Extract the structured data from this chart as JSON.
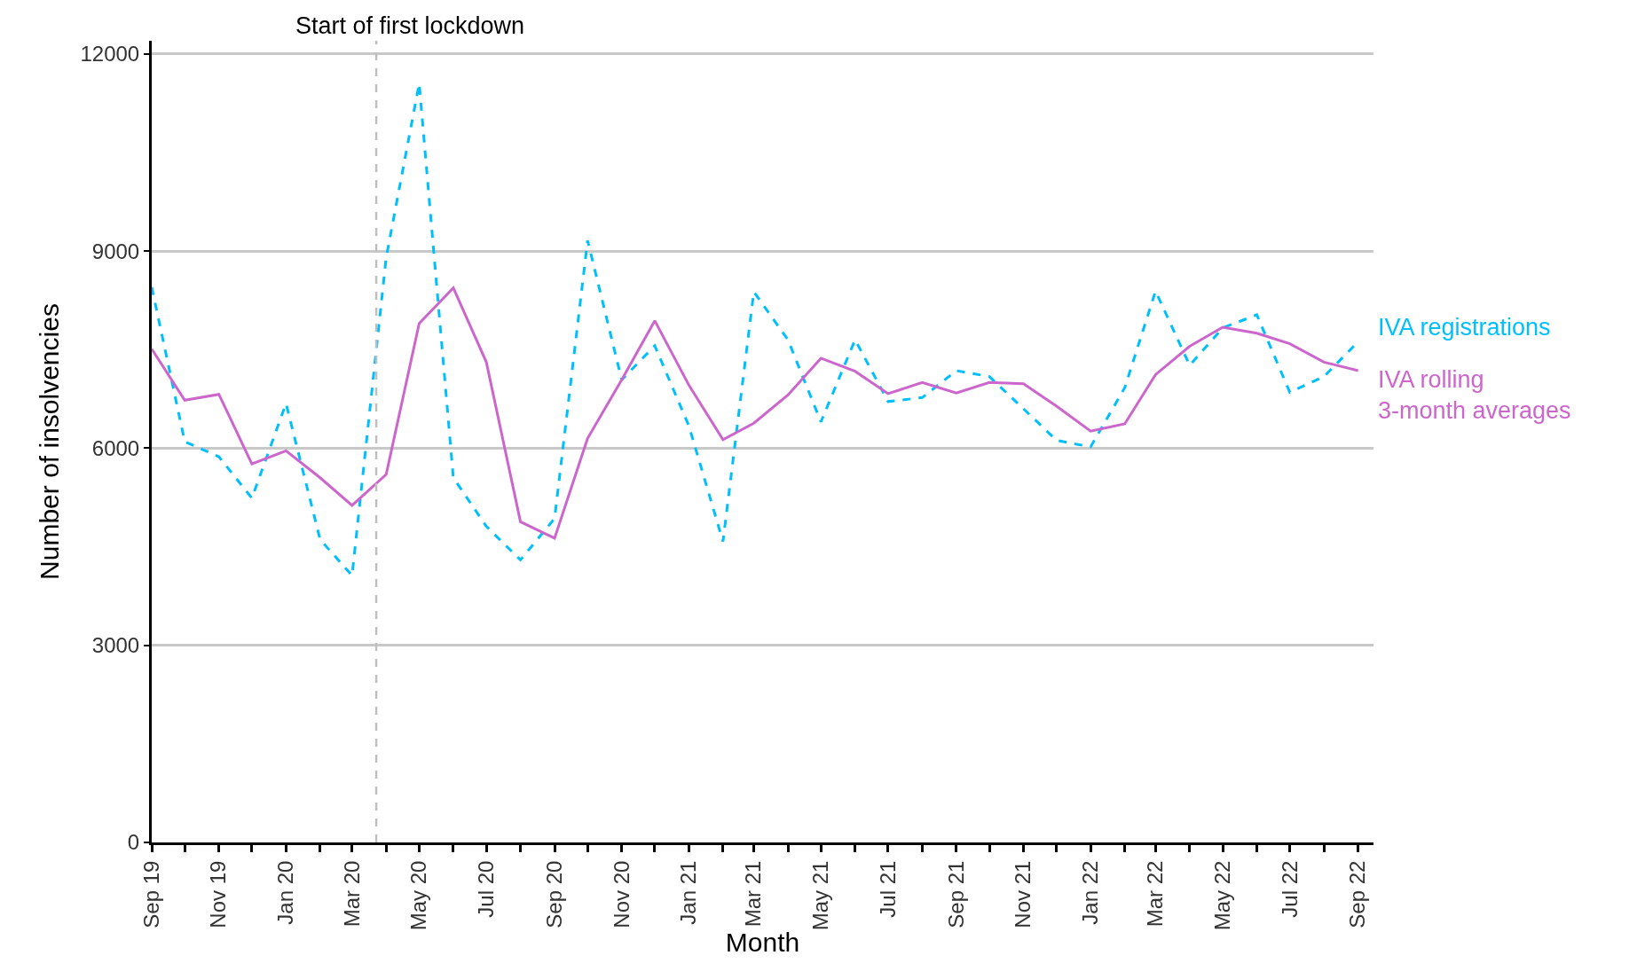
{
  "chart_data": {
    "type": "line",
    "xlabel": "Month",
    "ylabel": "Number of insolvencies",
    "x": [
      "2019-09",
      "2019-10",
      "2019-11",
      "2019-12",
      "2020-01",
      "2020-02",
      "2020-03",
      "2020-04",
      "2020-05",
      "2020-06",
      "2020-07",
      "2020-08",
      "2020-09",
      "2020-10",
      "2020-11",
      "2020-12",
      "2021-01",
      "2021-02",
      "2021-03",
      "2021-04",
      "2021-05",
      "2021-06",
      "2021-07",
      "2021-08",
      "2021-09",
      "2021-10",
      "2021-11",
      "2021-12",
      "2022-01",
      "2022-02",
      "2022-03",
      "2022-04",
      "2022-05",
      "2022-06",
      "2022-07",
      "2022-08",
      "2022-09"
    ],
    "series": [
      {
        "name": "IVA registrations",
        "color": "#00bfff",
        "line_style": "dashed",
        "values": [
          8450,
          6100,
          5870,
          5240,
          6680,
          4610,
          4060,
          8900,
          11550,
          5550,
          4810,
          4300,
          4930,
          9160,
          7040,
          7560,
          6340,
          4580,
          8380,
          7650,
          6400,
          7650,
          6710,
          6770,
          7180,
          7090,
          6600,
          6120,
          6020,
          6920,
          8390,
          7260,
          7830,
          8030,
          6850,
          7090,
          7620
        ]
      },
      {
        "name": "IVA rolling\n3-month averages",
        "color": "#cc66cc",
        "line_style": "solid",
        "values": [
          7510,
          6730,
          6820,
          5760,
          5960,
          5550,
          5130,
          5600,
          7900,
          8440,
          7310,
          4880,
          4630,
          6150,
          7040,
          7940,
          6960,
          6130,
          6380,
          6810,
          7370,
          7170,
          6830,
          7000,
          6840,
          7000,
          6980,
          6640,
          6260,
          6370,
          7120,
          7550,
          7840,
          7750,
          7590,
          7310,
          7180
        ]
      }
    ],
    "xlim": [
      "2019-09-01",
      "2022-09-15"
    ],
    "xticks": [
      {
        "value": "2019-09",
        "label": "Sep 19"
      },
      {
        "value": "2019-10",
        "label": null
      },
      {
        "value": "2019-11",
        "label": "Nov 19"
      },
      {
        "value": "2019-12",
        "label": null
      },
      {
        "value": "2020-01",
        "label": "Jan 20"
      },
      {
        "value": "2020-02",
        "label": null
      },
      {
        "value": "2020-03",
        "label": "Mar 20"
      },
      {
        "value": "2020-04",
        "label": null
      },
      {
        "value": "2020-05",
        "label": "May 20"
      },
      {
        "value": "2020-06",
        "label": null
      },
      {
        "value": "2020-07",
        "label": "Jul 20"
      },
      {
        "value": "2020-08",
        "label": null
      },
      {
        "value": "2020-09",
        "label": "Sep 20"
      },
      {
        "value": "2020-10",
        "label": null
      },
      {
        "value": "2020-11",
        "label": "Nov 20"
      },
      {
        "value": "2020-12",
        "label": null
      },
      {
        "value": "2021-01",
        "label": "Jan 21"
      },
      {
        "value": "2021-02",
        "label": null
      },
      {
        "value": "2021-03",
        "label": "Mar 21"
      },
      {
        "value": "2021-04",
        "label": null
      },
      {
        "value": "2021-05",
        "label": "May 21"
      },
      {
        "value": "2021-06",
        "label": null
      },
      {
        "value": "2021-07",
        "label": "Jul 21"
      },
      {
        "value": "2021-08",
        "label": null
      },
      {
        "value": "2021-09",
        "label": "Sep 21"
      },
      {
        "value": "2021-10",
        "label": null
      },
      {
        "value": "2021-11",
        "label": "Nov 21"
      },
      {
        "value": "2021-12",
        "label": null
      },
      {
        "value": "2022-01",
        "label": "Jan 22"
      },
      {
        "value": "2022-02",
        "label": null
      },
      {
        "value": "2022-03",
        "label": "Mar 22"
      },
      {
        "value": "2022-04",
        "label": null
      },
      {
        "value": "2022-05",
        "label": "May 22"
      },
      {
        "value": "2022-06",
        "label": null
      },
      {
        "value": "2022-07",
        "label": "Jul 22"
      },
      {
        "value": "2022-08",
        "label": null
      },
      {
        "value": "2022-09",
        "label": "Sep 22"
      }
    ],
    "ylim": [
      0,
      12200
    ],
    "yticks": [
      0,
      3000,
      6000,
      9000,
      12000
    ],
    "grid": "y",
    "legend": false,
    "ref_lines": [
      {
        "axis": "x",
        "value": "2020-03-23",
        "label": "Start of first lockdown",
        "color": "#bfbfbf",
        "line_style": "dashed"
      }
    ]
  }
}
